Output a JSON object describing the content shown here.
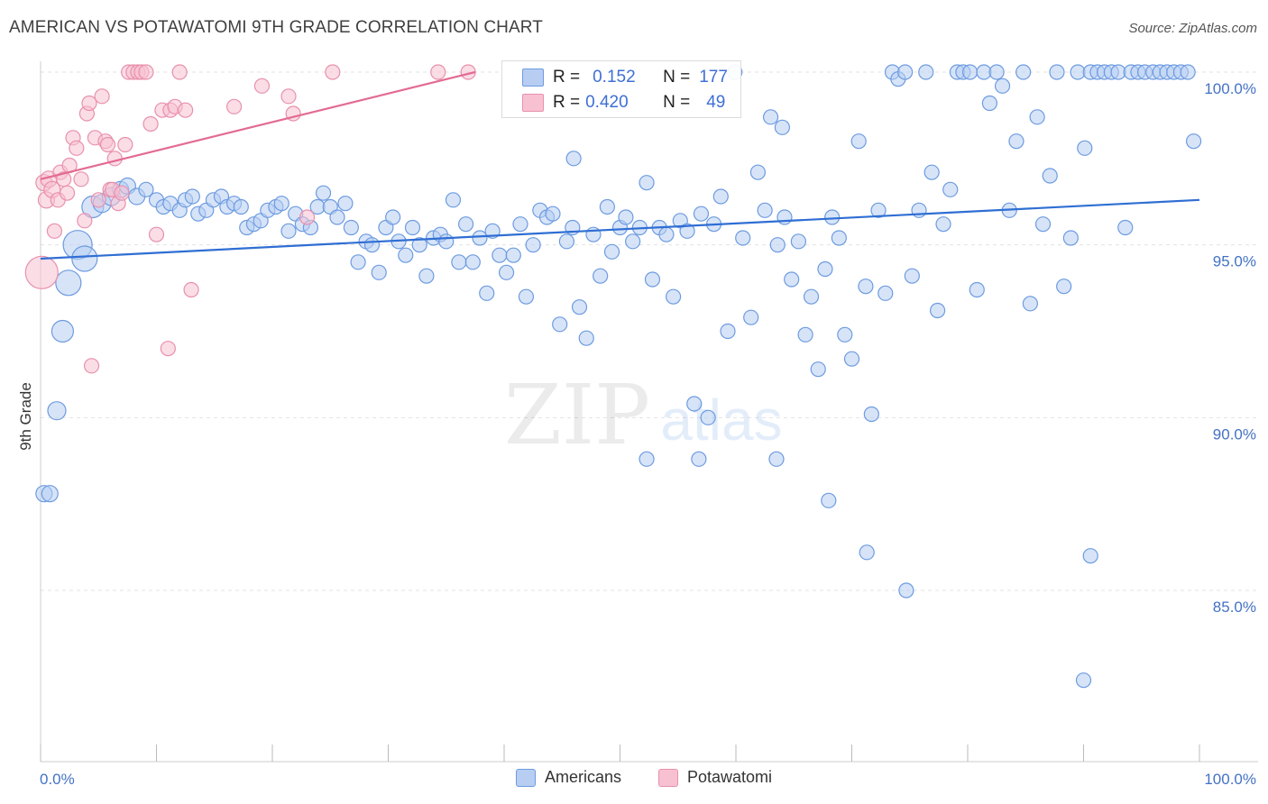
{
  "title": "AMERICAN VS POTAWATOMI 9TH GRADE CORRELATION CHART",
  "source": "Source: ZipAtlas.com",
  "watermark": {
    "zip": "ZIP",
    "atlas": "atlas"
  },
  "legend": {
    "rows": [
      {
        "r_label": "R =",
        "r_value": "0.152",
        "n_label": "N =",
        "n_value": "177"
      },
      {
        "r_label": "R =",
        "r_value": "0.420",
        "n_label": "N =",
        "n_value": "49"
      }
    ]
  },
  "bottom_legend": {
    "americans": "Americans",
    "potawatomi": "Potawatomi"
  },
  "colors": {
    "americans_fill": "#b7cdf2",
    "americans_stroke": "#6d9be0",
    "americans_line": "#2f6ed3",
    "potawatomi_fill": "#f8c1d1",
    "potawatomi_stroke": "#e890ad",
    "potawatomi_line": "#e36b93",
    "tick_label": "#4472c4",
    "grid": "#e3e3e3"
  },
  "chart_data": {
    "type": "scatter",
    "title": "AMERICAN VS POTAWATOMI 9TH GRADE CORRELATION CHART",
    "xlabel": "",
    "ylabel": "9th Grade",
    "xlim": [
      0,
      100
    ],
    "ylim": [
      80.5,
      100.8
    ],
    "x_tick_labels": [
      "0.0%",
      "100.0%"
    ],
    "y_ticks": [
      85,
      90,
      95,
      100
    ],
    "y_tick_labels": [
      "85.0%",
      "90.0%",
      "95.0%",
      "100.0%"
    ],
    "grid": true,
    "series": [
      {
        "name": "Americans",
        "trend": {
          "x": [
            0,
            100
          ],
          "y": [
            94.6,
            96.3
          ]
        },
        "points": [
          [
            0.3,
            87.8,
            9
          ],
          [
            0.8,
            87.8,
            9
          ],
          [
            1.4,
            90.2,
            10
          ],
          [
            1.9,
            92.5,
            12
          ],
          [
            2.4,
            93.9,
            14
          ],
          [
            3.2,
            95,
            16
          ],
          [
            3.8,
            94.6,
            14
          ],
          [
            4.5,
            96.1,
            12
          ],
          [
            5.3,
            96.2,
            10
          ],
          [
            6.1,
            96.4,
            10
          ],
          [
            6.9,
            96.6,
            9
          ],
          [
            7.5,
            96.7,
            9
          ],
          [
            8.3,
            96.4,
            9
          ],
          [
            9.1,
            96.6,
            8
          ],
          [
            10.0,
            96.3,
            8
          ],
          [
            10.6,
            96.1,
            8
          ],
          [
            11.2,
            96.2,
            8
          ],
          [
            12.0,
            96.0,
            8
          ],
          [
            12.5,
            96.3,
            8
          ],
          [
            13.1,
            96.4,
            8
          ],
          [
            13.6,
            95.9,
            8
          ],
          [
            14.3,
            96.0,
            8
          ],
          [
            14.9,
            96.3,
            8
          ],
          [
            15.6,
            96.4,
            8
          ],
          [
            16.1,
            96.1,
            8
          ],
          [
            16.7,
            96.2,
            8
          ],
          [
            17.3,
            96.1,
            8
          ],
          [
            17.8,
            95.5,
            8
          ],
          [
            18.4,
            95.6,
            8
          ],
          [
            19.0,
            95.7,
            8
          ],
          [
            19.6,
            96.0,
            8
          ],
          [
            20.3,
            96.1,
            8
          ],
          [
            20.8,
            96.2,
            8
          ],
          [
            21.4,
            95.4,
            8
          ],
          [
            22.0,
            95.9,
            8
          ],
          [
            22.6,
            95.6,
            8
          ],
          [
            23.3,
            95.5,
            8
          ],
          [
            23.9,
            96.1,
            8
          ],
          [
            24.4,
            96.5,
            8
          ],
          [
            25.0,
            96.1,
            8
          ],
          [
            25.6,
            95.8,
            8
          ],
          [
            26.3,
            96.2,
            8
          ],
          [
            26.8,
            95.5,
            8
          ],
          [
            27.4,
            94.5,
            8
          ],
          [
            28.1,
            95.1,
            8
          ],
          [
            28.6,
            95.0,
            8
          ],
          [
            29.2,
            94.2,
            8
          ],
          [
            29.8,
            95.5,
            8
          ],
          [
            30.4,
            95.8,
            8
          ],
          [
            30.9,
            95.1,
            8
          ],
          [
            31.5,
            94.7,
            8
          ],
          [
            32.1,
            95.5,
            8
          ],
          [
            32.7,
            95.0,
            8
          ],
          [
            33.3,
            94.1,
            8
          ],
          [
            33.9,
            95.2,
            8
          ],
          [
            34.5,
            95.3,
            8
          ],
          [
            35.0,
            95.1,
            8
          ],
          [
            35.6,
            96.3,
            8
          ],
          [
            36.1,
            94.5,
            8
          ],
          [
            36.7,
            95.6,
            8
          ],
          [
            37.3,
            94.5,
            8
          ],
          [
            37.9,
            95.2,
            8
          ],
          [
            38.5,
            93.6,
            8
          ],
          [
            39.0,
            95.4,
            8
          ],
          [
            39.6,
            94.7,
            8
          ],
          [
            40.2,
            94.2,
            8
          ],
          [
            40.8,
            94.7,
            8
          ],
          [
            41.4,
            95.6,
            8
          ],
          [
            41.9,
            93.5,
            8
          ],
          [
            42.5,
            95.0,
            8
          ],
          [
            43.1,
            96.0,
            8
          ],
          [
            43.7,
            95.8,
            8
          ],
          [
            44.2,
            95.9,
            8
          ],
          [
            44.8,
            92.7,
            8
          ],
          [
            45.4,
            95.1,
            8
          ],
          [
            45.9,
            95.5,
            8
          ],
          [
            46.5,
            93.2,
            8
          ],
          [
            47.1,
            92.3,
            8
          ],
          [
            47.7,
            95.3,
            8
          ],
          [
            48.3,
            94.1,
            8
          ],
          [
            48.9,
            96.1,
            8
          ],
          [
            49.3,
            94.8,
            8
          ],
          [
            50.0,
            95.5,
            8
          ],
          [
            50.5,
            95.8,
            8
          ],
          [
            51.1,
            95.1,
            8
          ],
          [
            51.7,
            95.5,
            8
          ],
          [
            52.3,
            96.8,
            8
          ],
          [
            52.8,
            94.0,
            8
          ],
          [
            53.4,
            95.5,
            8
          ],
          [
            54.0,
            95.3,
            8
          ],
          [
            54.6,
            93.5,
            8
          ],
          [
            55.2,
            95.7,
            8
          ],
          [
            55.8,
            95.4,
            8
          ],
          [
            56.4,
            90.4,
            8
          ],
          [
            57.0,
            95.9,
            8
          ],
          [
            57.6,
            90.0,
            8
          ],
          [
            58.1,
            95.6,
            8
          ],
          [
            58.7,
            96.4,
            8
          ],
          [
            59.3,
            92.5,
            8
          ],
          [
            59.9,
            100.0,
            8
          ],
          [
            60.6,
            95.2,
            8
          ],
          [
            61.3,
            92.9,
            8
          ],
          [
            61.9,
            97.1,
            8
          ],
          [
            62.5,
            96.0,
            8
          ],
          [
            63.0,
            98.7,
            8
          ],
          [
            63.6,
            95.0,
            8
          ],
          [
            64.2,
            95.8,
            8
          ],
          [
            64.8,
            94.0,
            8
          ],
          [
            65.4,
            95.1,
            8
          ],
          [
            66.0,
            92.4,
            8
          ],
          [
            66.5,
            93.5,
            8
          ],
          [
            67.1,
            91.4,
            8
          ],
          [
            67.7,
            94.3,
            8
          ],
          [
            68.3,
            95.8,
            8
          ],
          [
            68.9,
            95.2,
            8
          ],
          [
            69.4,
            92.4,
            8
          ],
          [
            70.0,
            91.7,
            8
          ],
          [
            70.6,
            98.0,
            8
          ],
          [
            71.2,
            93.8,
            8
          ],
          [
            71.7,
            90.1,
            8
          ],
          [
            72.3,
            96.0,
            8
          ],
          [
            72.9,
            93.6,
            8
          ],
          [
            73.5,
            100.0,
            8
          ],
          [
            74.0,
            99.8,
            8
          ],
          [
            74.6,
            100.0,
            8
          ],
          [
            75.2,
            94.1,
            8
          ],
          [
            75.8,
            96.0,
            8
          ],
          [
            76.4,
            100.0,
            8
          ],
          [
            76.9,
            97.1,
            8
          ],
          [
            77.4,
            93.1,
            8
          ],
          [
            77.9,
            95.6,
            8
          ],
          [
            78.5,
            96.6,
            8
          ],
          [
            79.1,
            100.0,
            8
          ],
          [
            79.6,
            100.0,
            8
          ],
          [
            80.2,
            100.0,
            8
          ],
          [
            80.8,
            93.7,
            8
          ],
          [
            81.4,
            100.0,
            8
          ],
          [
            81.9,
            99.1,
            8
          ],
          [
            82.5,
            100.0,
            8
          ],
          [
            83.0,
            99.6,
            8
          ],
          [
            83.6,
            96.0,
            8
          ],
          [
            84.2,
            98.0,
            8
          ],
          [
            84.8,
            100.0,
            8
          ],
          [
            85.4,
            93.3,
            8
          ],
          [
            86.0,
            98.7,
            8
          ],
          [
            86.5,
            95.6,
            8
          ],
          [
            87.1,
            97.0,
            8
          ],
          [
            87.7,
            100.0,
            8
          ],
          [
            88.3,
            93.8,
            8
          ],
          [
            88.9,
            95.2,
            8
          ],
          [
            89.5,
            100.0,
            8
          ],
          [
            90.1,
            97.8,
            8
          ],
          [
            90.6,
            100.0,
            8
          ],
          [
            91.2,
            100.0,
            8
          ],
          [
            91.8,
            100.0,
            8
          ],
          [
            92.4,
            100.0,
            8
          ],
          [
            93.0,
            100.0,
            8
          ],
          [
            93.6,
            95.5,
            8
          ],
          [
            94.1,
            100.0,
            8
          ],
          [
            94.7,
            100.0,
            8
          ],
          [
            95.3,
            100.0,
            8
          ],
          [
            96.0,
            100.0,
            8
          ],
          [
            96.6,
            100.0,
            8
          ],
          [
            97.2,
            100.0,
            8
          ],
          [
            97.8,
            100.0,
            8
          ],
          [
            98.4,
            100.0,
            8
          ],
          [
            99.0,
            100.0,
            8
          ],
          [
            99.5,
            98.0,
            8
          ],
          [
            46.0,
            97.5,
            8
          ],
          [
            64.0,
            98.4,
            8
          ],
          [
            68.0,
            87.6,
            8
          ],
          [
            63.5,
            88.8,
            8
          ],
          [
            56.8,
            88.8,
            8
          ],
          [
            52.3,
            88.8,
            8
          ],
          [
            90.6,
            86.0,
            8
          ],
          [
            71.3,
            86.1,
            8
          ],
          [
            74.7,
            85.0,
            8
          ],
          [
            90.0,
            82.4,
            8
          ]
        ]
      },
      {
        "name": "Potawatomi",
        "trend": {
          "x": [
            0,
            37.5
          ],
          "y": [
            96.9,
            100.0
          ]
        },
        "points": [
          [
            0.1,
            94.2,
            18
          ],
          [
            0.3,
            96.8,
            9
          ],
          [
            0.5,
            96.3,
            9
          ],
          [
            0.7,
            96.9,
            9
          ],
          [
            1.0,
            96.6,
            9
          ],
          [
            1.2,
            95.4,
            8
          ],
          [
            1.5,
            96.3,
            8
          ],
          [
            1.7,
            97.1,
            8
          ],
          [
            2.0,
            96.9,
            8
          ],
          [
            2.3,
            96.5,
            8
          ],
          [
            2.5,
            97.3,
            8
          ],
          [
            2.8,
            98.1,
            8
          ],
          [
            3.1,
            97.8,
            8
          ],
          [
            3.5,
            96.9,
            8
          ],
          [
            3.8,
            95.7,
            8
          ],
          [
            4.0,
            98.8,
            8
          ],
          [
            4.2,
            99.1,
            8
          ],
          [
            4.4,
            91.5,
            8
          ],
          [
            4.7,
            98.1,
            8
          ],
          [
            5.0,
            96.3,
            8
          ],
          [
            5.3,
            99.3,
            8
          ],
          [
            5.6,
            98.0,
            8
          ],
          [
            5.8,
            97.9,
            8
          ],
          [
            6.0,
            96.6,
            8
          ],
          [
            6.2,
            96.6,
            8
          ],
          [
            6.4,
            97.5,
            8
          ],
          [
            6.7,
            96.2,
            8
          ],
          [
            7.0,
            96.5,
            8
          ],
          [
            7.3,
            97.9,
            8
          ],
          [
            7.6,
            100.0,
            8
          ],
          [
            8.0,
            100.0,
            8
          ],
          [
            8.4,
            100.0,
            8
          ],
          [
            8.7,
            100.0,
            8
          ],
          [
            9.1,
            100.0,
            8
          ],
          [
            9.5,
            98.5,
            8
          ],
          [
            10.0,
            95.3,
            8
          ],
          [
            10.5,
            98.9,
            8
          ],
          [
            11.0,
            92.0,
            8
          ],
          [
            11.2,
            98.9,
            8
          ],
          [
            11.6,
            99.0,
            8
          ],
          [
            12.0,
            100.0,
            8
          ],
          [
            12.5,
            98.9,
            8
          ],
          [
            13.0,
            93.7,
            8
          ],
          [
            16.7,
            99.0,
            8
          ],
          [
            19.1,
            99.6,
            8
          ],
          [
            21.4,
            99.3,
            8
          ],
          [
            21.8,
            98.8,
            8
          ],
          [
            23.0,
            95.8,
            8
          ],
          [
            25.2,
            100.0,
            8
          ],
          [
            34.3,
            100.0,
            8
          ],
          [
            36.9,
            100.0,
            8
          ]
        ]
      }
    ]
  }
}
